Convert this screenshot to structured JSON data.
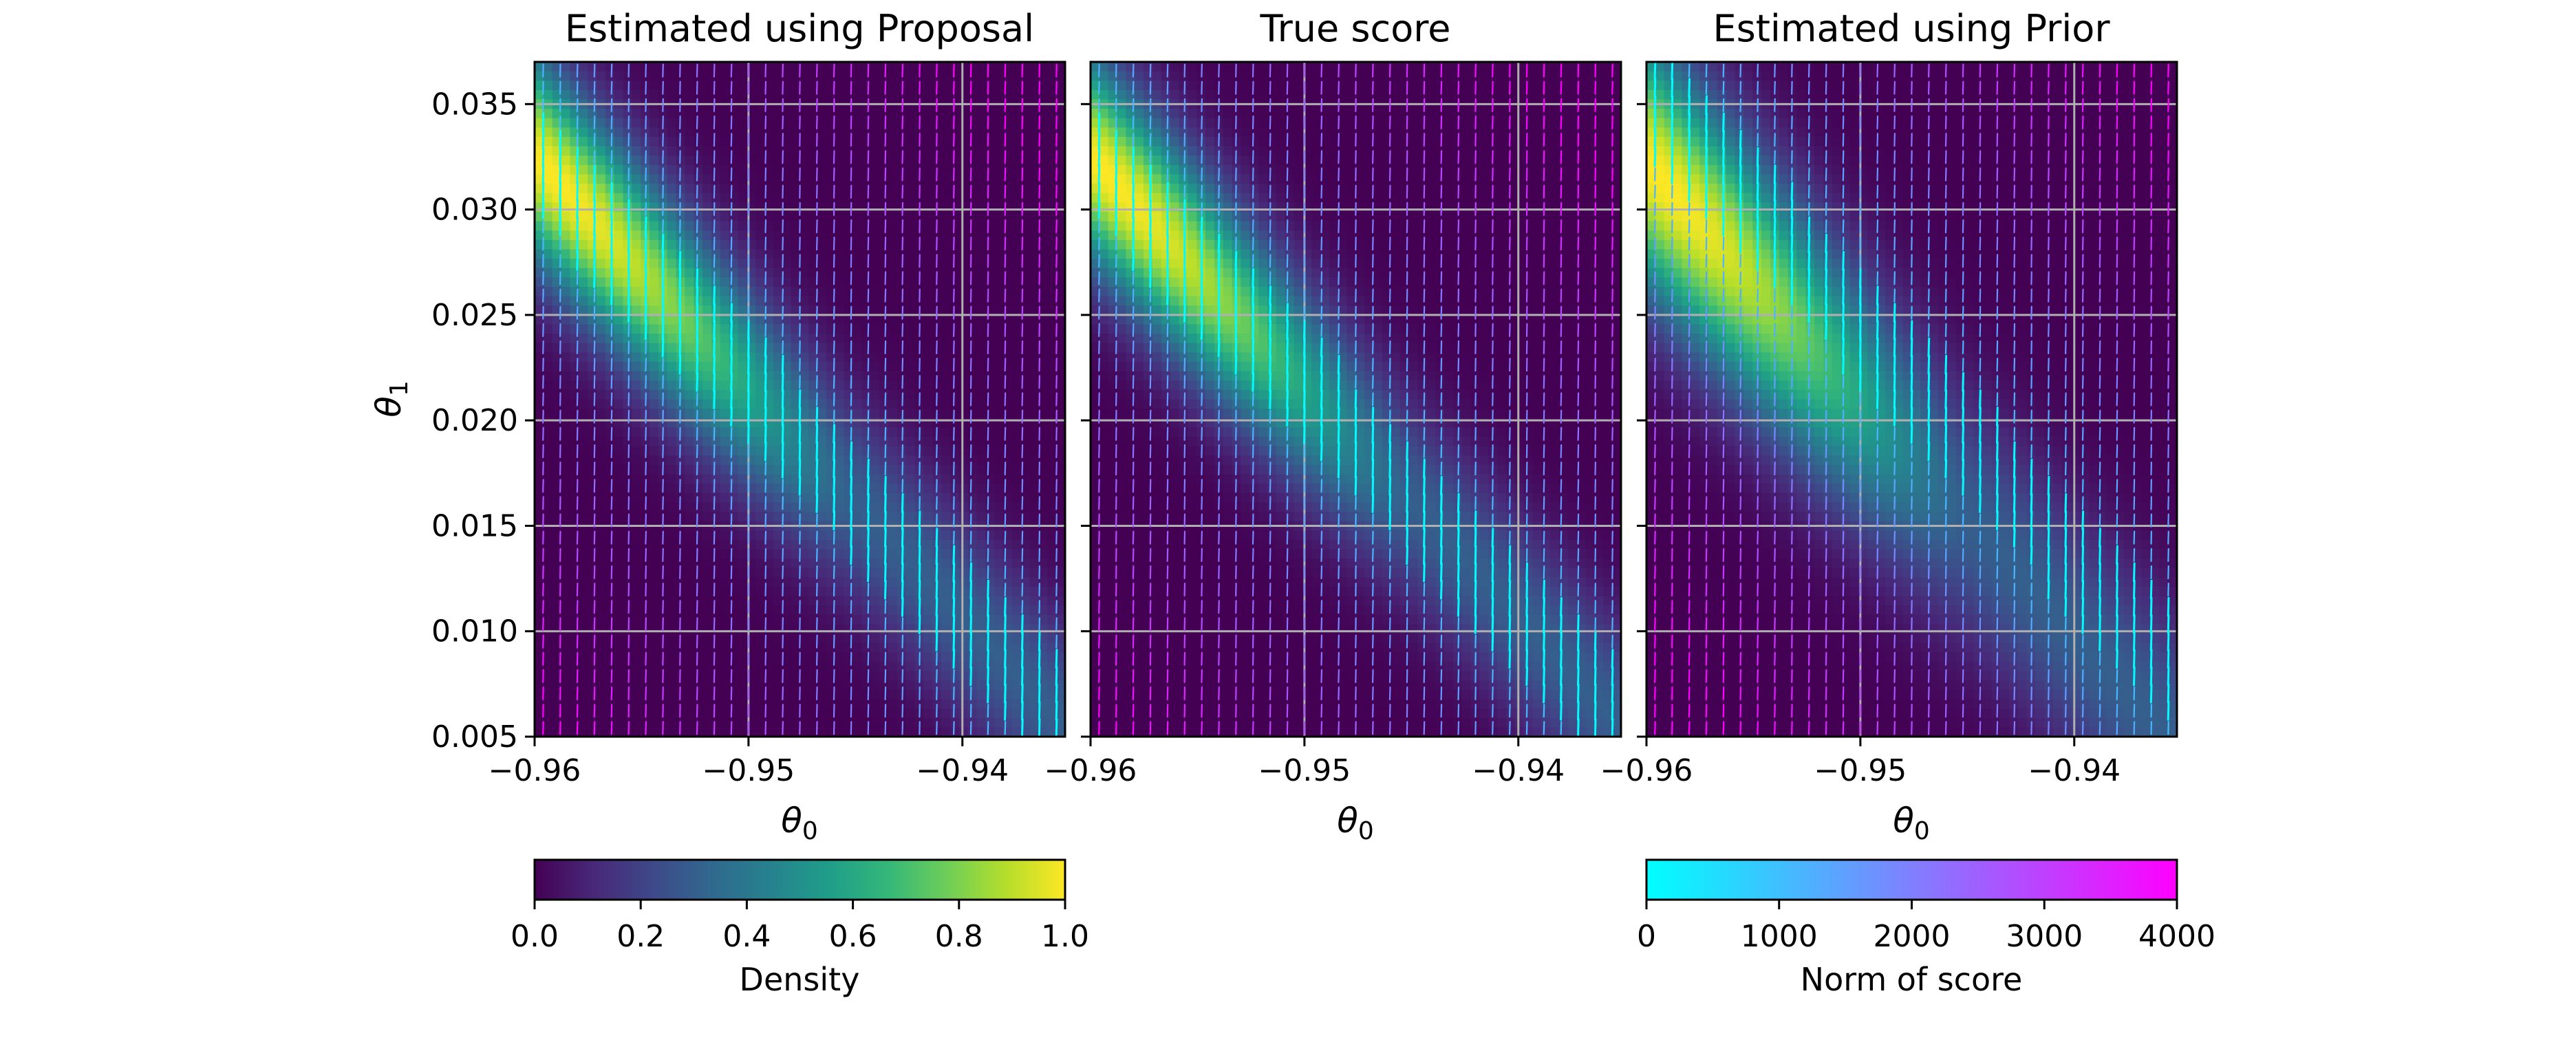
{
  "chart_data": [
    {
      "type": "heatmap",
      "title": "Estimated using Proposal",
      "xlabel": "θ0",
      "ylabel": "θ1",
      "xlim": [
        -0.96,
        -0.9352
      ],
      "ylim": [
        0.005,
        0.037
      ],
      "xticks": [
        -0.96,
        -0.95,
        -0.94
      ],
      "xtick_labels": [
        "−0.96",
        "−0.95",
        "−0.94"
      ],
      "yticks": [
        0.005,
        0.01,
        0.015,
        0.02,
        0.025,
        0.03,
        0.035
      ],
      "ytick_labels": [
        "0.005",
        "0.010",
        "0.015",
        "0.020",
        "0.025",
        "0.030",
        "0.035"
      ],
      "grid": true,
      "density_ridge": {
        "start": [
          -0.96,
          0.0325
        ],
        "end": [
          -0.9352,
          0.0055
        ],
        "peak_x": -0.9595,
        "width_y": 0.0034
      },
      "vector_field": {
        "type": "quiver",
        "pattern": "arrows point toward the high-density ridge",
        "cols": 31,
        "rows": 39
      }
    },
    {
      "type": "heatmap",
      "title": "True score",
      "xlabel": "θ0",
      "ylabel": "",
      "xlim": [
        -0.96,
        -0.9352
      ],
      "ylim": [
        0.005,
        0.037
      ],
      "xticks": [
        -0.96,
        -0.95,
        -0.94
      ],
      "xtick_labels": [
        "−0.96",
        "−0.95",
        "−0.94"
      ],
      "yticks": [
        0.005,
        0.01,
        0.015,
        0.02,
        0.025,
        0.03,
        0.035
      ],
      "grid": true,
      "density_ridge": {
        "start": [
          -0.96,
          0.0325
        ],
        "end": [
          -0.9352,
          0.0055
        ],
        "peak_x": -0.9595,
        "width_y": 0.0034
      },
      "vector_field": {
        "type": "quiver",
        "pattern": "arrows point toward the high-density ridge",
        "cols": 31,
        "rows": 39
      }
    },
    {
      "type": "heatmap",
      "title": "Estimated using Prior",
      "xlabel": "θ0",
      "ylabel": "",
      "xlim": [
        -0.96,
        -0.9352
      ],
      "ylim": [
        0.005,
        0.037
      ],
      "xticks": [
        -0.96,
        -0.95,
        -0.94
      ],
      "xtick_labels": [
        "−0.96",
        "−0.95",
        "−0.94"
      ],
      "yticks": [
        0.005,
        0.01,
        0.015,
        0.02,
        0.025,
        0.03,
        0.035
      ],
      "grid": true,
      "density_ridge": {
        "start": [
          -0.96,
          0.0322
        ],
        "end": [
          -0.9352,
          0.0045
        ],
        "peak_x": -0.9595,
        "width_y": 0.0042
      },
      "vector_field": {
        "type": "quiver",
        "pattern": "arrows point toward a line offset above the density ridge",
        "cols": 31,
        "rows": 39
      }
    }
  ],
  "colorbars": [
    {
      "label": "Density",
      "colormap": "viridis",
      "range": [
        0,
        1
      ],
      "ticks": [
        0.0,
        0.2,
        0.4,
        0.6,
        0.8,
        1.0
      ],
      "tick_labels": [
        "0.0",
        "0.2",
        "0.4",
        "0.6",
        "0.8",
        "1.0"
      ]
    },
    {
      "label": "Norm of score",
      "colormap": "cool",
      "range": [
        0,
        4000
      ],
      "ticks": [
        0,
        1000,
        2000,
        3000,
        4000
      ],
      "tick_labels": [
        "0",
        "1000",
        "2000",
        "3000",
        "4000"
      ]
    }
  ],
  "colors": {
    "viridis_stops": [
      "#440154",
      "#482878",
      "#3e4989",
      "#31688e",
      "#26828e",
      "#1f9e89",
      "#35b779",
      "#6ece58",
      "#b5de2b",
      "#fde725"
    ],
    "cool_start": "#00ffff",
    "cool_end": "#ff00ff",
    "grid": "#b0b0b0"
  }
}
